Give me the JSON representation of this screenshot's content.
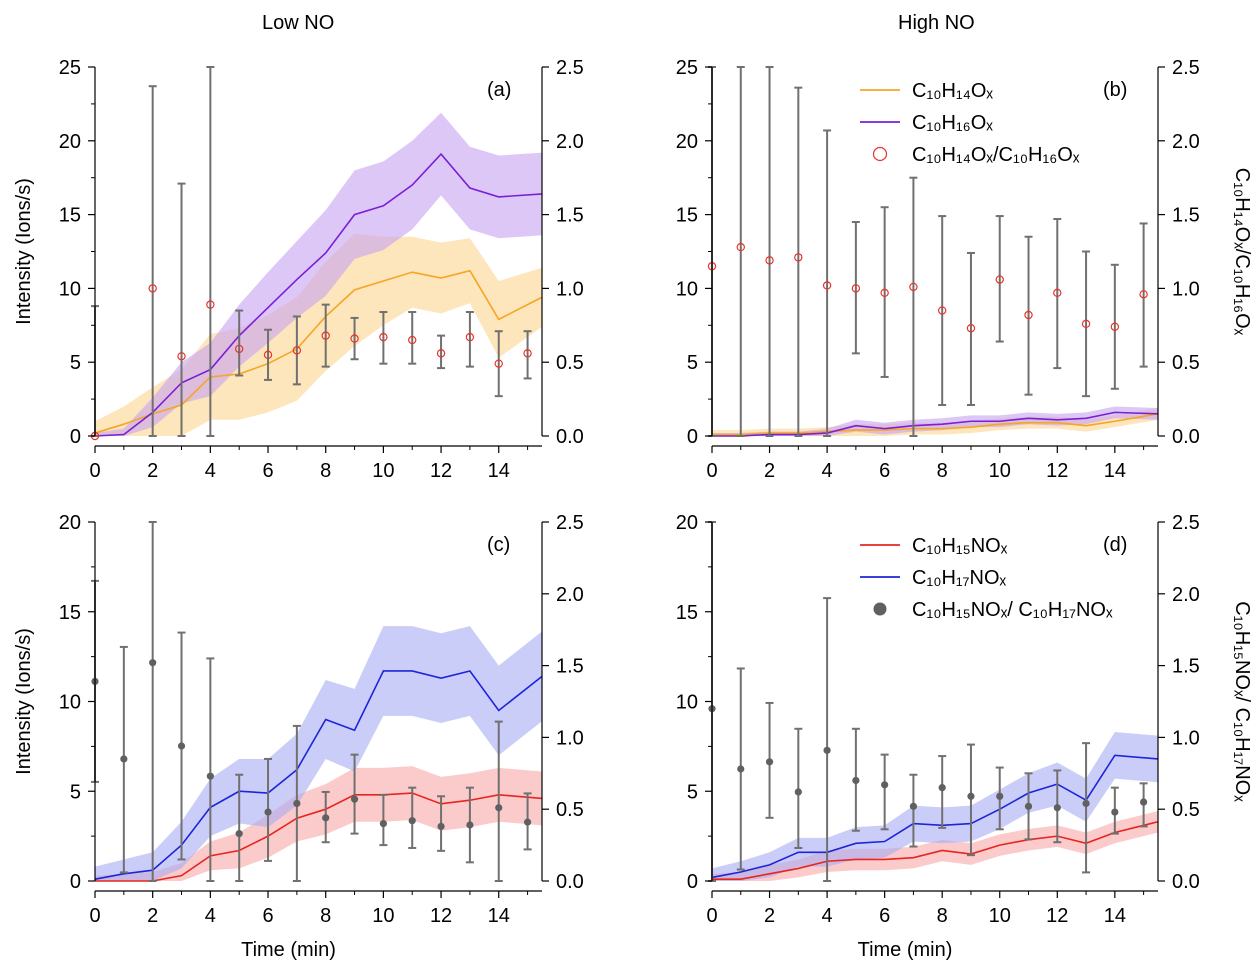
{
  "column_titles": [
    "Low NO",
    "High NO"
  ],
  "chart_data": [
    {
      "type": "line",
      "panel_label": "(a)",
      "xlabel": "",
      "ylabel": "Intensity (Ions/s)",
      "y2label": "",
      "xlim": [
        0,
        15.5
      ],
      "ylim": [
        0,
        25
      ],
      "y2lim": [
        0,
        2.5
      ],
      "xticks": [
        0,
        2,
        4,
        6,
        8,
        10,
        12,
        14
      ],
      "yticks": [
        0,
        5,
        10,
        15,
        20,
        25
      ],
      "y2ticks": [
        "0.0",
        "0.5",
        "1.0",
        "1.5",
        "2.0",
        "2.5"
      ],
      "series": [
        {
          "name": "C10H14Ox",
          "color": "#f5a623",
          "band_color": "#fcd48f",
          "x": [
            0,
            1,
            2,
            3,
            4,
            5,
            6,
            7,
            8,
            9,
            10,
            11,
            12,
            13,
            14,
            15.5
          ],
          "y": [
            0.2,
            0.8,
            1.5,
            2.1,
            4.0,
            4.2,
            4.9,
            5.9,
            8.1,
            9.9,
            10.5,
            11.1,
            10.7,
            11.2,
            7.9,
            9.4
          ],
          "band": [
            0.8,
            1.2,
            1.8,
            2.4,
            2.9,
            3.1,
            3.3,
            3.5,
            3.7,
            3.8,
            3.0,
            2.4,
            2.4,
            2.2,
            2.6,
            2.0
          ]
        },
        {
          "name": "C10H16Ox",
          "color": "#7b1fd6",
          "band_color": "#c7a1f2",
          "x": [
            0,
            1,
            2,
            3,
            4,
            5,
            6,
            7,
            8,
            9,
            10,
            11,
            12,
            13,
            14,
            15.5
          ],
          "y": [
            0.0,
            0.1,
            1.6,
            3.6,
            4.5,
            6.8,
            8.7,
            10.6,
            12.4,
            15.0,
            15.6,
            17.0,
            19.1,
            16.8,
            16.2,
            16.4
          ],
          "band": [
            0.2,
            0.4,
            1.0,
            1.4,
            1.8,
            2.1,
            2.4,
            2.6,
            2.9,
            3.0,
            3.0,
            3.0,
            2.8,
            2.8,
            2.8,
            2.8
          ]
        }
      ],
      "ratio": {
        "name": "C10H14Ox/C10H16Ox",
        "style": "open-red",
        "x": [
          0,
          2,
          3,
          4,
          5,
          6,
          7,
          8,
          9,
          10,
          11,
          12,
          13,
          14,
          15
        ],
        "y": [
          0.0,
          1.0,
          0.54,
          0.89,
          0.59,
          0.55,
          0.58,
          0.68,
          0.66,
          0.67,
          0.65,
          0.56,
          0.67,
          0.49,
          0.56
        ],
        "err_low": [
          0.0,
          0.0,
          0.0,
          0.0,
          0.41,
          0.38,
          0.35,
          0.47,
          0.52,
          0.49,
          0.49,
          0.46,
          0.47,
          0.27,
          0.39
        ],
        "err_high": [
          0.88,
          2.37,
          1.71,
          2.5,
          0.85,
          0.72,
          0.81,
          0.89,
          0.8,
          0.84,
          0.84,
          0.68,
          0.84,
          0.71,
          0.71
        ]
      },
      "legend": []
    },
    {
      "type": "line",
      "panel_label": "(b)",
      "xlabel": "",
      "ylabel": "",
      "y2label": "C10H14Ox/C10H16Ox",
      "xlim": [
        0,
        15.5
      ],
      "ylim": [
        0,
        25
      ],
      "y2lim": [
        0,
        2.5
      ],
      "xticks": [
        0,
        2,
        4,
        6,
        8,
        10,
        12,
        14
      ],
      "yticks": [
        0,
        5,
        10,
        15,
        20,
        25
      ],
      "y2ticks": [
        "0.0",
        "0.5",
        "1.0",
        "1.5",
        "2.0",
        "2.5"
      ],
      "series": [
        {
          "name": "C10H14Ox",
          "color": "#f5a623",
          "band_color": "#fcd48f",
          "x": [
            0,
            1,
            2,
            3,
            4,
            5,
            6,
            7,
            8,
            9,
            10,
            11,
            12,
            13,
            14,
            15.5
          ],
          "y": [
            0.1,
            0.1,
            0.2,
            0.2,
            0.3,
            0.4,
            0.4,
            0.5,
            0.5,
            0.6,
            0.8,
            0.9,
            0.9,
            0.7,
            1.0,
            1.5
          ],
          "band": [
            0.3,
            0.3,
            0.3,
            0.3,
            0.3,
            0.4,
            0.4,
            0.4,
            0.4,
            0.4,
            0.4,
            0.4,
            0.4,
            0.4,
            0.4,
            0.4
          ]
        },
        {
          "name": "C10H16Ox",
          "color": "#7b1fd6",
          "band_color": "#c7a1f2",
          "x": [
            0,
            1,
            2,
            3,
            4,
            5,
            6,
            7,
            8,
            9,
            10,
            11,
            12,
            13,
            14,
            15.5
          ],
          "y": [
            0.0,
            0.0,
            0.1,
            0.1,
            0.2,
            0.7,
            0.5,
            0.7,
            0.8,
            1.0,
            1.0,
            1.2,
            1.1,
            1.2,
            1.6,
            1.5
          ],
          "band": [
            0.2,
            0.2,
            0.2,
            0.2,
            0.3,
            0.4,
            0.4,
            0.4,
            0.4,
            0.4,
            0.4,
            0.4,
            0.4,
            0.4,
            0.4,
            0.4
          ]
        }
      ],
      "ratio": {
        "name": "C10H14Ox/C10H16Ox",
        "style": "open-red",
        "x": [
          0,
          1,
          2,
          3,
          4,
          5,
          6,
          7,
          8,
          9,
          10,
          11,
          12,
          13,
          14,
          15
        ],
        "y": [
          1.15,
          1.28,
          1.19,
          1.21,
          1.02,
          1.0,
          0.97,
          1.01,
          0.85,
          0.73,
          1.06,
          0.82,
          0.97,
          0.76,
          0.74,
          0.96
        ],
        "err_low": [
          0.0,
          0.0,
          0.0,
          0.0,
          0.0,
          0.56,
          0.4,
          0.0,
          0.21,
          0.21,
          0.64,
          0.28,
          0.46,
          0.27,
          0.32,
          0.47
        ],
        "err_high": [
          2.5,
          2.5,
          2.5,
          2.36,
          2.07,
          1.45,
          1.55,
          1.75,
          1.49,
          1.24,
          1.49,
          1.35,
          1.47,
          1.25,
          1.16,
          1.44
        ]
      },
      "legend": [
        {
          "label": "C₁₀H₁₄Oₓ",
          "kind": "line",
          "color": "#f5a623"
        },
        {
          "label": "C₁₀H₁₆Oₓ",
          "kind": "line",
          "color": "#7b1fd6"
        },
        {
          "label": "C₁₀H₁₄Oₓ/C₁₀H₁₆Oₓ",
          "kind": "open-circle",
          "color": "#e8332a"
        }
      ]
    },
    {
      "type": "line",
      "panel_label": "(c)",
      "xlabel": "Time (min)",
      "ylabel": "Intensity (Ions/s)",
      "y2label": "",
      "xlim": [
        0,
        15.5
      ],
      "ylim": [
        0,
        20
      ],
      "y2lim": [
        0,
        2.5
      ],
      "xticks": [
        0,
        2,
        4,
        6,
        8,
        10,
        12,
        14
      ],
      "yticks": [
        0,
        5,
        10,
        15,
        20
      ],
      "y2ticks": [
        "0.0",
        "0.5",
        "1.0",
        "1.5",
        "2.0",
        "2.5"
      ],
      "series": [
        {
          "name": "C10H15NOx",
          "color": "#e8241f",
          "band_color": "#f7a9a6",
          "x": [
            0,
            1,
            2,
            3,
            4,
            5,
            6,
            7,
            8,
            9,
            10,
            11,
            12,
            13,
            14,
            15.5
          ],
          "y": [
            0.0,
            0.0,
            0.0,
            0.3,
            1.4,
            1.7,
            2.5,
            3.5,
            4.0,
            4.8,
            4.8,
            4.9,
            4.3,
            4.5,
            4.8,
            4.6
          ],
          "band": [
            0.3,
            0.4,
            0.5,
            0.7,
            0.8,
            1.0,
            1.2,
            1.3,
            1.4,
            1.5,
            1.5,
            1.5,
            1.5,
            1.5,
            1.5,
            1.5
          ]
        },
        {
          "name": "C10H17NOx",
          "color": "#1d25d8",
          "band_color": "#a8acf5",
          "x": [
            0,
            1,
            2,
            3,
            4,
            5,
            6,
            7,
            8,
            9,
            10,
            11,
            12,
            13,
            14,
            15.5
          ],
          "y": [
            0.1,
            0.4,
            0.6,
            2.0,
            4.1,
            5.0,
            4.9,
            6.2,
            9.0,
            8.4,
            11.7,
            11.7,
            11.3,
            11.7,
            9.5,
            11.4
          ],
          "band": [
            0.7,
            0.8,
            1.0,
            1.3,
            1.6,
            1.8,
            1.9,
            2.0,
            2.2,
            2.3,
            2.5,
            2.5,
            2.5,
            2.5,
            2.5,
            2.5
          ]
        }
      ],
      "ratio": {
        "name": "C10H15NOx/ C10H17NOx",
        "style": "filled-gray",
        "x": [
          0,
          1,
          2,
          3,
          4,
          5,
          6,
          7,
          8,
          9,
          10,
          11,
          12,
          13,
          14,
          15
        ],
        "y": [
          1.39,
          0.85,
          1.52,
          0.94,
          0.73,
          0.33,
          0.48,
          0.54,
          0.44,
          0.57,
          0.4,
          0.42,
          0.38,
          0.39,
          0.51,
          0.41
        ],
        "err_low": [
          0.69,
          0.06,
          0.0,
          0.15,
          0.0,
          0.0,
          0.14,
          0.0,
          0.27,
          0.33,
          0.25,
          0.23,
          0.21,
          0.13,
          0.0,
          0.22
        ],
        "err_high": [
          2.09,
          1.63,
          2.5,
          1.73,
          1.55,
          0.74,
          0.85,
          1.08,
          0.62,
          0.88,
          0.6,
          0.65,
          0.59,
          0.65,
          1.11,
          0.61
        ]
      },
      "legend": []
    },
    {
      "type": "line",
      "panel_label": "(d)",
      "xlabel": "Time (min)",
      "ylabel": "",
      "y2label": "C10H15NOx/ C10H17NOx",
      "xlim": [
        0,
        15.5
      ],
      "ylim": [
        0,
        20
      ],
      "y2lim": [
        0,
        2.5
      ],
      "xticks": [
        0,
        2,
        4,
        6,
        8,
        10,
        12,
        14
      ],
      "yticks": [
        0,
        5,
        10,
        15,
        20
      ],
      "y2ticks": [
        "0.0",
        "0.5",
        "1.0",
        "1.5",
        "2.0",
        "2.5"
      ],
      "series": [
        {
          "name": "C10H15NOx",
          "color": "#e8241f",
          "band_color": "#f7a9a6",
          "x": [
            0,
            1,
            2,
            3,
            4,
            5,
            6,
            7,
            8,
            9,
            10,
            11,
            12,
            13,
            14,
            15.5
          ],
          "y": [
            0.1,
            0.1,
            0.4,
            0.7,
            1.1,
            1.2,
            1.2,
            1.3,
            1.7,
            1.5,
            2.0,
            2.3,
            2.5,
            2.1,
            2.7,
            3.3
          ],
          "band": [
            0.3,
            0.4,
            0.5,
            0.5,
            0.6,
            0.6,
            0.6,
            0.6,
            0.6,
            0.6,
            0.6,
            0.6,
            0.6,
            0.6,
            0.6,
            0.6
          ]
        },
        {
          "name": "C10H17NOx",
          "color": "#1d25d8",
          "band_color": "#a8acf5",
          "x": [
            0,
            1,
            2,
            3,
            4,
            5,
            6,
            7,
            8,
            9,
            10,
            11,
            12,
            13,
            14,
            15.5
          ],
          "y": [
            0.2,
            0.5,
            0.9,
            1.6,
            1.6,
            2.1,
            2.2,
            3.2,
            3.1,
            3.2,
            4.0,
            4.9,
            5.4,
            4.5,
            7.0,
            6.8
          ],
          "band": [
            0.5,
            0.6,
            0.7,
            0.8,
            0.8,
            0.9,
            0.9,
            1.0,
            1.0,
            1.0,
            1.1,
            1.1,
            1.2,
            1.2,
            1.3,
            1.3
          ]
        }
      ],
      "ratio": {
        "name": "C10H15NOx/ C10H17NOx",
        "style": "filled-gray",
        "x": [
          0,
          1,
          2,
          3,
          4,
          5,
          6,
          7,
          8,
          9,
          10,
          11,
          12,
          13,
          14,
          15
        ],
        "y": [
          1.2,
          0.78,
          0.83,
          0.62,
          0.91,
          0.7,
          0.67,
          0.52,
          0.65,
          0.59,
          0.59,
          0.52,
          0.51,
          0.54,
          0.48,
          0.55
        ],
        "err_low": [
          0.0,
          0.08,
          0.44,
          0.23,
          0.0,
          0.35,
          0.36,
          0.24,
          0.37,
          0.18,
          0.36,
          0.29,
          0.27,
          0.06,
          0.33,
          0.38
        ],
        "err_high": [
          2.5,
          1.48,
          1.24,
          1.06,
          1.97,
          1.06,
          0.88,
          0.74,
          0.87,
          0.95,
          0.79,
          0.75,
          0.77,
          0.96,
          0.65,
          0.68
        ]
      },
      "legend": [
        {
          "label": "C₁₀H₁₅NOₓ",
          "kind": "line",
          "color": "#e8241f"
        },
        {
          "label": "C₁₀H₁₇NOₓ",
          "kind": "line",
          "color": "#1d25d8"
        },
        {
          "label": "C₁₀H₁₅NOₓ/ C₁₀H₁₇NOₓ",
          "kind": "filled-circle",
          "color": "#606060"
        }
      ]
    }
  ]
}
